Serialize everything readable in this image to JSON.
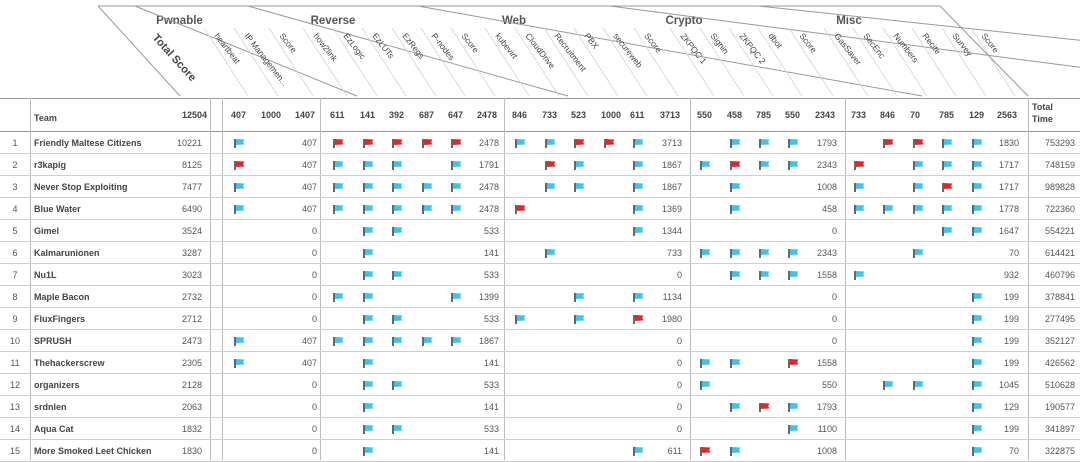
{
  "categories": [
    {
      "name": "Pwnable",
      "challenges": [
        "heartbeat",
        "IP Managemen..."
      ],
      "total": "1407",
      "values": [
        "407",
        "1000"
      ]
    },
    {
      "name": "Reverse",
      "challenges": [
        "how2link",
        "EzLogic",
        "EzLUTs",
        "EzRegs",
        "P-nodes"
      ],
      "total": "2478",
      "values": [
        "611",
        "141",
        "392",
        "687",
        "647"
      ]
    },
    {
      "name": "Web",
      "challenges": [
        "kubevirt",
        "CloudDrive",
        "Recruitment",
        "PBX",
        "secureweb"
      ],
      "total": "3713",
      "values": [
        "846",
        "733",
        "523",
        "1000",
        "611"
      ]
    },
    {
      "name": "Crypto",
      "challenges": [
        "ZKPQC 1",
        "Signin",
        "ZKPQC 2",
        "dbot"
      ],
      "total": "2343",
      "values": [
        "550",
        "458",
        "785",
        "550"
      ]
    },
    {
      "name": "Misc",
      "challenges": [
        "GasSaver",
        "SecEnc",
        "Numbers",
        "Recite",
        "Survey"
      ],
      "total": "2563",
      "values": [
        "733",
        "846",
        "70",
        "785",
        "129"
      ]
    }
  ],
  "header": {
    "total_score_label": "Total Score",
    "score_label": "Score",
    "team_label": "Team",
    "total_time_label_1": "Total",
    "total_time_label_2": "Time",
    "total_max": "12504"
  },
  "teams": [
    {
      "rank": "1",
      "name": "Friendly Maltese Citizens",
      "total": "10221",
      "time": "753293",
      "pwn": {
        "flags": [
          "b",
          ""
        ],
        "score": "407"
      },
      "rev": {
        "flags": [
          "r",
          "r",
          "r",
          "r",
          "r"
        ],
        "score": "2478"
      },
      "web": {
        "flags": [
          "b",
          "b",
          "r",
          "r",
          "b"
        ],
        "score": "3713"
      },
      "cry": {
        "flags": [
          "",
          "b",
          "b",
          "b"
        ],
        "score": "1793"
      },
      "misc": {
        "flags": [
          "",
          "r",
          "r",
          "b",
          "b"
        ],
        "score": "1830"
      }
    },
    {
      "rank": "2",
      "name": "r3kapig",
      "total": "8125",
      "time": "748159",
      "pwn": {
        "flags": [
          "r",
          ""
        ],
        "score": "407"
      },
      "rev": {
        "flags": [
          "b",
          "b",
          "b",
          "",
          "b"
        ],
        "score": "1791"
      },
      "web": {
        "flags": [
          "",
          "r",
          "b",
          "",
          "b"
        ],
        "score": "1867"
      },
      "cry": {
        "flags": [
          "b",
          "r",
          "b",
          "b"
        ],
        "score": "2343"
      },
      "misc": {
        "flags": [
          "r",
          "",
          "b",
          "b",
          "b"
        ],
        "score": "1717"
      }
    },
    {
      "rank": "3",
      "name": "Never Stop Exploiting",
      "total": "7477",
      "time": "989828",
      "pwn": {
        "flags": [
          "b",
          ""
        ],
        "score": "407"
      },
      "rev": {
        "flags": [
          "b",
          "b",
          "b",
          "b",
          "b"
        ],
        "score": "2478"
      },
      "web": {
        "flags": [
          "",
          "b",
          "b",
          "",
          "b"
        ],
        "score": "1867"
      },
      "cry": {
        "flags": [
          "",
          "b",
          "",
          ""
        ],
        "score": "1008"
      },
      "misc": {
        "flags": [
          "b",
          "",
          "b",
          "r",
          "b"
        ],
        "score": "1717"
      }
    },
    {
      "rank": "4",
      "name": "Blue Water",
      "total": "6490",
      "time": "722360",
      "pwn": {
        "flags": [
          "b",
          ""
        ],
        "score": "407"
      },
      "rev": {
        "flags": [
          "b",
          "b",
          "b",
          "b",
          "b"
        ],
        "score": "2478"
      },
      "web": {
        "flags": [
          "r",
          "",
          "",
          "",
          "b"
        ],
        "score": "1369"
      },
      "cry": {
        "flags": [
          "",
          "b",
          "",
          ""
        ],
        "score": "458"
      },
      "misc": {
        "flags": [
          "b",
          "b",
          "b",
          "b",
          "b"
        ],
        "score": "1778"
      }
    },
    {
      "rank": "5",
      "name": "Gimel",
      "total": "3524",
      "time": "554221",
      "pwn": {
        "flags": [
          "",
          ""
        ],
        "score": "0"
      },
      "rev": {
        "flags": [
          "",
          "b",
          "b",
          "",
          ""
        ],
        "score": "533"
      },
      "web": {
        "flags": [
          "",
          "",
          "",
          "",
          "b"
        ],
        "score": "1344"
      },
      "cry": {
        "flags": [
          "",
          "",
          "",
          ""
        ],
        "score": "0"
      },
      "misc": {
        "flags": [
          "",
          "",
          "",
          "b",
          "b"
        ],
        "score": "1647"
      }
    },
    {
      "rank": "6",
      "name": "Kalmarunionen",
      "total": "3287",
      "time": "614421",
      "pwn": {
        "flags": [
          "",
          ""
        ],
        "score": "0"
      },
      "rev": {
        "flags": [
          "",
          "b",
          "",
          "",
          ""
        ],
        "score": "141"
      },
      "web": {
        "flags": [
          "",
          "b",
          "",
          "",
          ""
        ],
        "score": "733"
      },
      "cry": {
        "flags": [
          "b",
          "b",
          "b",
          "b"
        ],
        "score": "2343"
      },
      "misc": {
        "flags": [
          "",
          "",
          "b",
          "",
          ""
        ],
        "score": "70"
      }
    },
    {
      "rank": "7",
      "name": "Nu1L",
      "total": "3023",
      "time": "460796",
      "pwn": {
        "flags": [
          "",
          ""
        ],
        "score": "0"
      },
      "rev": {
        "flags": [
          "",
          "b",
          "b",
          "",
          ""
        ],
        "score": "533"
      },
      "web": {
        "flags": [
          "",
          "",
          "",
          "",
          ""
        ],
        "score": "0"
      },
      "cry": {
        "flags": [
          "",
          "b",
          "b",
          "b"
        ],
        "score": "1558"
      },
      "misc": {
        "flags": [
          "b",
          "",
          "",
          "",
          ""
        ],
        "score": "932"
      }
    },
    {
      "rank": "8",
      "name": "Maple Bacon",
      "total": "2732",
      "time": "378841",
      "pwn": {
        "flags": [
          "",
          ""
        ],
        "score": "0"
      },
      "rev": {
        "flags": [
          "b",
          "b",
          "",
          "",
          "b"
        ],
        "score": "1399"
      },
      "web": {
        "flags": [
          "",
          "",
          "b",
          "",
          "b"
        ],
        "score": "1134"
      },
      "cry": {
        "flags": [
          "",
          "",
          "",
          ""
        ],
        "score": "0"
      },
      "misc": {
        "flags": [
          "",
          "",
          "",
          "",
          "b"
        ],
        "score": "199"
      }
    },
    {
      "rank": "9",
      "name": "FluxFingers",
      "total": "2712",
      "time": "277495",
      "pwn": {
        "flags": [
          "",
          ""
        ],
        "score": "0"
      },
      "rev": {
        "flags": [
          "",
          "b",
          "b",
          "",
          ""
        ],
        "score": "533"
      },
      "web": {
        "flags": [
          "b",
          "",
          "b",
          "",
          "r"
        ],
        "score": "1980"
      },
      "cry": {
        "flags": [
          "",
          "",
          "",
          ""
        ],
        "score": "0"
      },
      "misc": {
        "flags": [
          "",
          "",
          "",
          "",
          "b"
        ],
        "score": "199"
      }
    },
    {
      "rank": "10",
      "name": "SPRUSH",
      "total": "2473",
      "time": "352127",
      "pwn": {
        "flags": [
          "b",
          ""
        ],
        "score": "407"
      },
      "rev": {
        "flags": [
          "b",
          "b",
          "b",
          "b",
          "b"
        ],
        "score": "1867"
      },
      "web": {
        "flags": [
          "",
          "",
          "",
          "",
          ""
        ],
        "score": "0"
      },
      "cry": {
        "flags": [
          "",
          "",
          "",
          ""
        ],
        "score": "0"
      },
      "misc": {
        "flags": [
          "",
          "",
          "",
          "",
          "b"
        ],
        "score": "199"
      }
    },
    {
      "rank": "11",
      "name": "Thehackerscrew",
      "total": "2305",
      "time": "426562",
      "pwn": {
        "flags": [
          "b",
          ""
        ],
        "score": "407"
      },
      "rev": {
        "flags": [
          "",
          "b",
          "",
          "",
          ""
        ],
        "score": "141"
      },
      "web": {
        "flags": [
          "",
          "",
          "",
          "",
          ""
        ],
        "score": "0"
      },
      "cry": {
        "flags": [
          "b",
          "b",
          "",
          "r"
        ],
        "score": "1558"
      },
      "misc": {
        "flags": [
          "",
          "",
          "",
          "",
          "b"
        ],
        "score": "199"
      }
    },
    {
      "rank": "12",
      "name": "organizers",
      "total": "2128",
      "time": "510628",
      "pwn": {
        "flags": [
          "",
          ""
        ],
        "score": "0"
      },
      "rev": {
        "flags": [
          "",
          "b",
          "b",
          "",
          ""
        ],
        "score": "533"
      },
      "web": {
        "flags": [
          "",
          "",
          "",
          "",
          ""
        ],
        "score": "0"
      },
      "cry": {
        "flags": [
          "b",
          "",
          "",
          ""
        ],
        "score": "550"
      },
      "misc": {
        "flags": [
          "",
          "b",
          "b",
          "",
          "b"
        ],
        "score": "1045"
      }
    },
    {
      "rank": "13",
      "name": "srdnlen",
      "total": "2063",
      "time": "190577",
      "pwn": {
        "flags": [
          "",
          ""
        ],
        "score": "0"
      },
      "rev": {
        "flags": [
          "",
          "b",
          "",
          "",
          ""
        ],
        "score": "141"
      },
      "web": {
        "flags": [
          "",
          "",
          "",
          "",
          ""
        ],
        "score": "0"
      },
      "cry": {
        "flags": [
          "",
          "b",
          "r",
          "b"
        ],
        "score": "1793"
      },
      "misc": {
        "flags": [
          "",
          "",
          "",
          "",
          "b"
        ],
        "score": "129"
      }
    },
    {
      "rank": "14",
      "name": "Aqua Cat",
      "total": "1832",
      "time": "341897",
      "pwn": {
        "flags": [
          "",
          ""
        ],
        "score": "0"
      },
      "rev": {
        "flags": [
          "",
          "b",
          "b",
          "",
          ""
        ],
        "score": "533"
      },
      "web": {
        "flags": [
          "",
          "",
          "",
          "",
          ""
        ],
        "score": "0"
      },
      "cry": {
        "flags": [
          "",
          "",
          "",
          "b"
        ],
        "score": "1100"
      },
      "misc": {
        "flags": [
          "",
          "",
          "",
          "",
          "b"
        ],
        "score": "199"
      }
    },
    {
      "rank": "15",
      "name": "More Smoked Leet Chicken",
      "total": "1830",
      "time": "322875",
      "pwn": {
        "flags": [
          "",
          ""
        ],
        "score": "0"
      },
      "rev": {
        "flags": [
          "",
          "b",
          "",
          "",
          ""
        ],
        "score": "141"
      },
      "web": {
        "flags": [
          "",
          "",
          "",
          "",
          "b"
        ],
        "score": "611"
      },
      "cry": {
        "flags": [
          "r",
          "b",
          "",
          ""
        ],
        "score": "1008"
      },
      "misc": {
        "flags": [
          "",
          "",
          "",
          "",
          "b"
        ],
        "score": "70"
      }
    }
  ],
  "colors": {
    "solved": "#3cc4ef",
    "first_blood": "#e8242b",
    "grid": "#bdbdbd"
  }
}
